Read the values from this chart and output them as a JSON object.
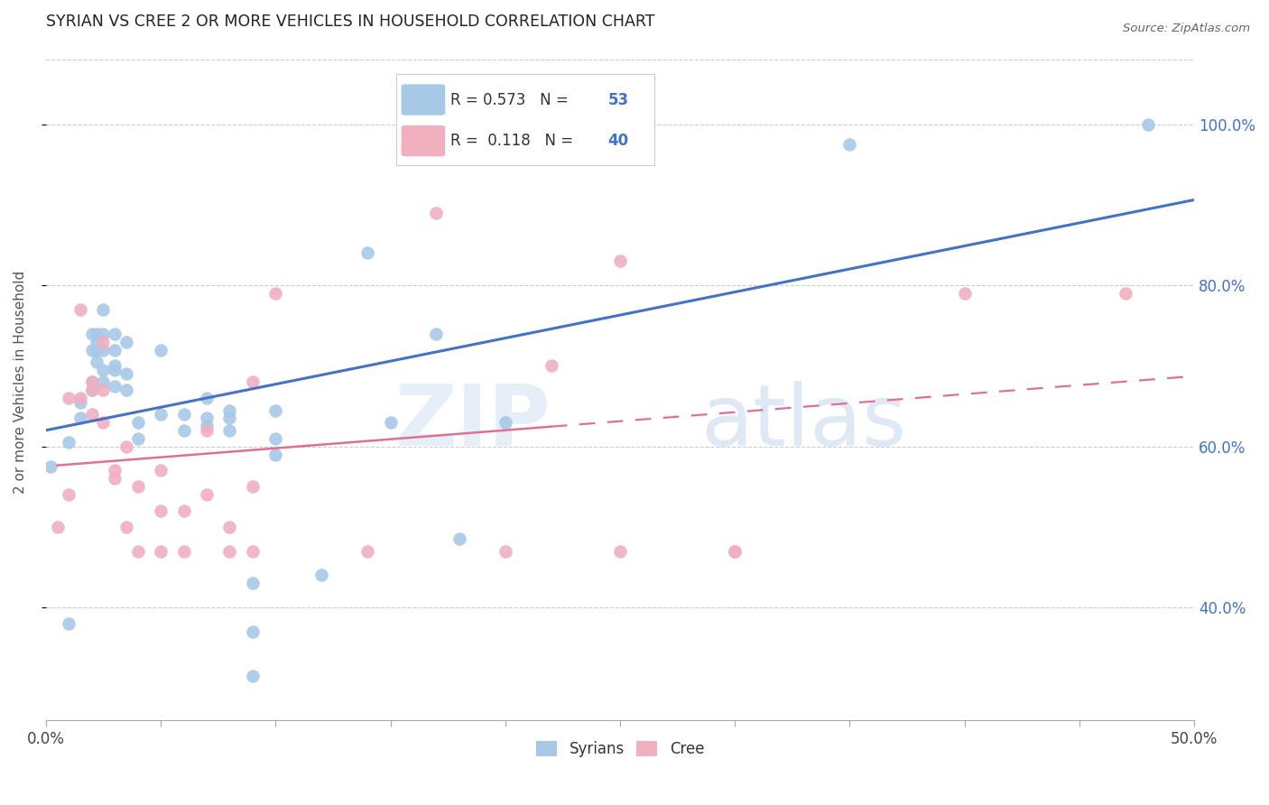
{
  "title": "SYRIAN VS CREE 2 OR MORE VEHICLES IN HOUSEHOLD CORRELATION CHART",
  "source": "Source: ZipAtlas.com",
  "ylabel_label": "2 or more Vehicles in Household",
  "blue_color": "#a8c8e8",
  "pink_color": "#f0b0c0",
  "blue_line_color": "#4472c4",
  "pink_line_color": "#e07090",
  "watermark_zip": "ZIP",
  "watermark_atlas": "atlas",
  "syrians_x": [
    0.002,
    0.01,
    0.01,
    0.015,
    0.015,
    0.02,
    0.02,
    0.02,
    0.02,
    0.022,
    0.022,
    0.022,
    0.022,
    0.025,
    0.025,
    0.025,
    0.025,
    0.025,
    0.03,
    0.03,
    0.03,
    0.03,
    0.03,
    0.035,
    0.035,
    0.035,
    0.04,
    0.04,
    0.05,
    0.05,
    0.06,
    0.06,
    0.07,
    0.07,
    0.07,
    0.08,
    0.08,
    0.08,
    0.09,
    0.09,
    0.09,
    0.1,
    0.1,
    0.1,
    0.12,
    0.14,
    0.15,
    0.17,
    0.18,
    0.2,
    0.25,
    0.35,
    0.48
  ],
  "syrians_y": [
    0.575,
    0.38,
    0.605,
    0.635,
    0.655,
    0.68,
    0.67,
    0.72,
    0.74,
    0.705,
    0.72,
    0.73,
    0.74,
    0.68,
    0.695,
    0.72,
    0.74,
    0.77,
    0.675,
    0.695,
    0.7,
    0.72,
    0.74,
    0.67,
    0.69,
    0.73,
    0.63,
    0.61,
    0.72,
    0.64,
    0.62,
    0.64,
    0.625,
    0.635,
    0.66,
    0.635,
    0.645,
    0.62,
    0.43,
    0.37,
    0.315,
    0.61,
    0.645,
    0.59,
    0.44,
    0.84,
    0.63,
    0.74,
    0.485,
    0.63,
    0.97,
    0.975,
    1.0
  ],
  "cree_x": [
    0.005,
    0.01,
    0.01,
    0.015,
    0.015,
    0.02,
    0.02,
    0.02,
    0.025,
    0.025,
    0.025,
    0.03,
    0.03,
    0.035,
    0.035,
    0.04,
    0.04,
    0.05,
    0.05,
    0.05,
    0.06,
    0.06,
    0.07,
    0.07,
    0.08,
    0.08,
    0.09,
    0.09,
    0.09,
    0.1,
    0.14,
    0.17,
    0.2,
    0.22,
    0.25,
    0.25,
    0.3,
    0.3,
    0.4,
    0.47
  ],
  "cree_y": [
    0.5,
    0.54,
    0.66,
    0.66,
    0.77,
    0.64,
    0.67,
    0.68,
    0.63,
    0.67,
    0.73,
    0.56,
    0.57,
    0.6,
    0.5,
    0.55,
    0.47,
    0.52,
    0.47,
    0.57,
    0.47,
    0.52,
    0.62,
    0.54,
    0.5,
    0.47,
    0.47,
    0.55,
    0.68,
    0.79,
    0.47,
    0.89,
    0.47,
    0.7,
    0.83,
    0.47,
    0.47,
    0.47,
    0.79,
    0.79
  ],
  "xlim": [
    0.0,
    0.5
  ],
  "ylim": [
    0.26,
    1.1
  ],
  "ytick_vals": [
    0.4,
    0.6,
    0.8,
    1.0
  ],
  "xtick_show": [
    0.0,
    0.5
  ],
  "xtick_all": [
    0.0,
    0.05,
    0.1,
    0.15,
    0.2,
    0.25,
    0.3,
    0.35,
    0.4,
    0.45,
    0.5
  ],
  "grid_color": "#cccccc",
  "R_syrian": 0.573,
  "N_syrian": 53,
  "R_cree": 0.118,
  "N_cree": 40
}
